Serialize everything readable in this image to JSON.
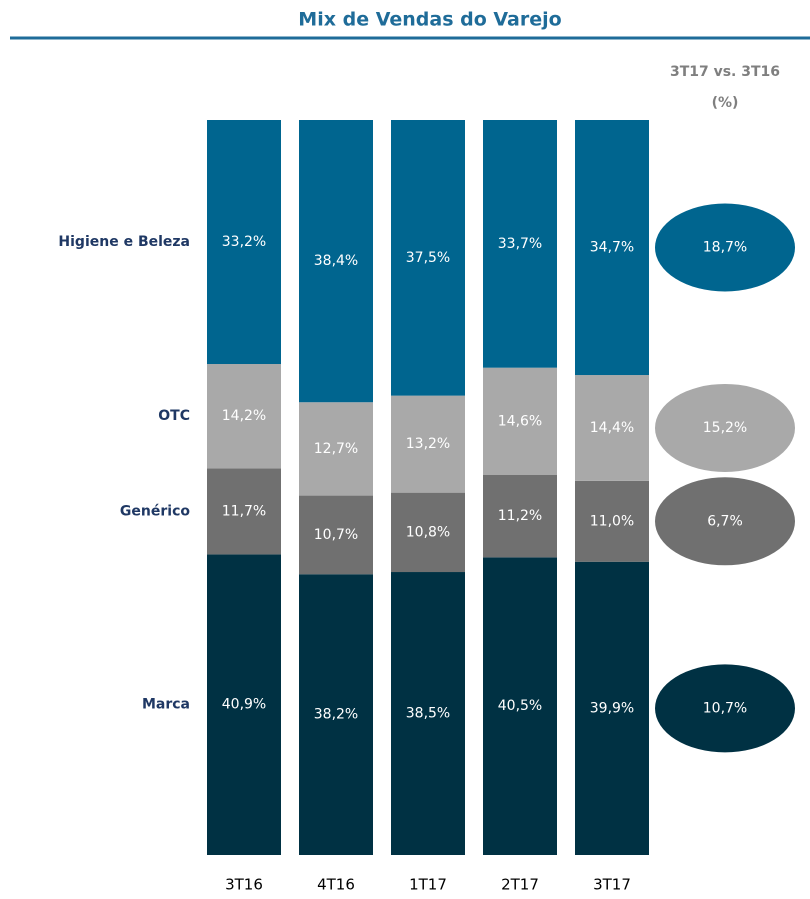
{
  "chart_data": {
    "type": "stacked_bar",
    "title": "Mix de Vendas do Varejo",
    "categories": [
      "3T16",
      "4T16",
      "1T17",
      "2T17",
      "3T17"
    ],
    "ylim": [
      0,
      100
    ],
    "series": [
      {
        "name": "Marca",
        "color": "#003143",
        "values": [
          40.9,
          38.2,
          38.5,
          40.5,
          39.9
        ],
        "value_labels": [
          "40,9%",
          "38,2%",
          "38,5%",
          "40,5%",
          "39,9%"
        ]
      },
      {
        "name": "Genérico",
        "color": "#707070",
        "values": [
          11.7,
          10.7,
          10.8,
          11.2,
          11.0
        ],
        "value_labels": [
          "11,7%",
          "10,7%",
          "10,8%",
          "11,2%",
          "11,0%"
        ]
      },
      {
        "name": "OTC",
        "color": "#a9a9a9",
        "values": [
          14.2,
          12.7,
          13.2,
          14.6,
          14.4
        ],
        "value_labels": [
          "14,2%",
          "12,7%",
          "13,2%",
          "14,6%",
          "14,4%"
        ]
      },
      {
        "name": "Higiene e Beleza",
        "color": "#00658f",
        "values": [
          33.2,
          38.4,
          37.5,
          33.7,
          34.7
        ],
        "value_labels": [
          "33,2%",
          "38,4%",
          "37,5%",
          "33,7%",
          "34,7%"
        ]
      }
    ],
    "growth": {
      "title": "3T17 vs. 3T16",
      "unit": "(%)",
      "values": [
        10.7,
        6.7,
        15.2,
        18.7
      ],
      "value_labels": [
        "10,7%",
        "6,7%",
        "15,2%",
        "18,7%"
      ]
    }
  }
}
